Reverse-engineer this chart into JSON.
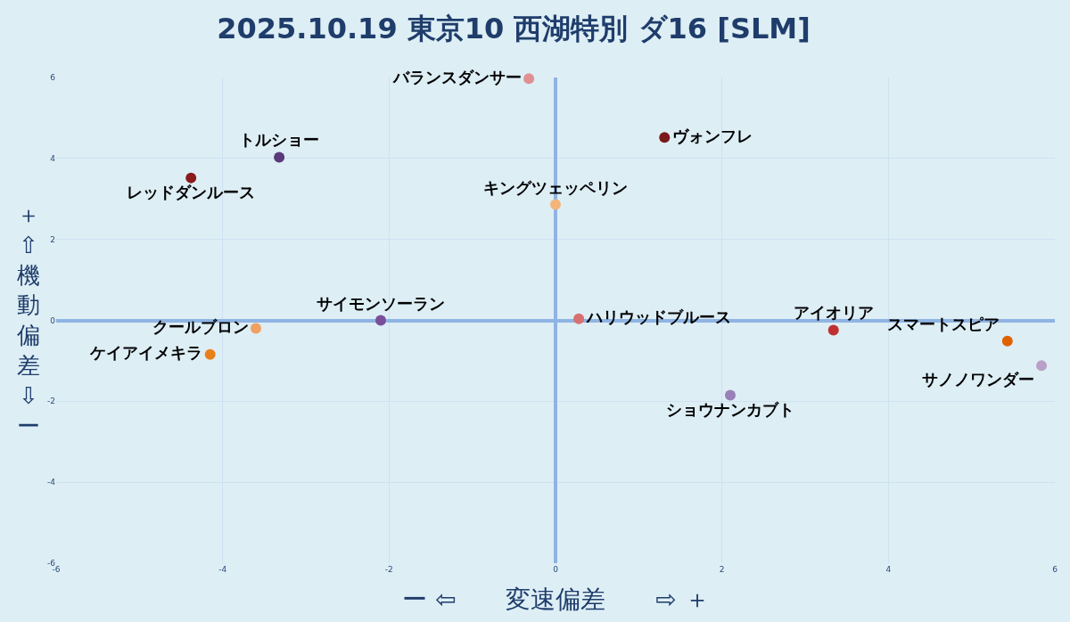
{
  "chart_data": {
    "type": "scatter",
    "title": "2025.10.19 東京10 西湖特別 ダ16 [SLM]",
    "xlabel": "ー ⇦　　変速偏差　　⇨ ＋",
    "ylabel": "＋⇧機動偏差⇩ー",
    "xlim": [
      -6,
      6
    ],
    "ylim": [
      -6,
      6
    ],
    "xticks": [
      -6,
      -4,
      -2,
      0,
      2,
      4,
      6
    ],
    "yticks": [
      -6,
      -4,
      -2,
      0,
      2,
      4,
      6
    ],
    "grid": true,
    "marker": "circle",
    "legend": false,
    "series": [
      {
        "name": "バランスダンサー",
        "color": "#e09090",
        "x": [
          -0.32
        ],
        "values": [
          5.97
        ]
      },
      {
        "name": "トルショー",
        "color": "#5a3a7a",
        "x": [
          -3.32
        ],
        "values": [
          4.03
        ]
      },
      {
        "name": "レッドダンルース",
        "color": "#8b1a1a",
        "x": [
          -4.38
        ],
        "values": [
          3.52
        ]
      },
      {
        "name": "ヴォンフレ",
        "color": "#7a1a1a",
        "x": [
          1.31
        ],
        "values": [
          4.52
        ]
      },
      {
        "name": "キングツェッペリン",
        "color": "#f4b57a",
        "x": [
          0.0
        ],
        "values": [
          2.86
        ]
      },
      {
        "name": "サイモンソーラン",
        "color": "#7a4f9a",
        "x": [
          -2.1
        ],
        "values": [
          0.0
        ]
      },
      {
        "name": "クールブロン",
        "color": "#f0a060",
        "x": [
          -3.6
        ],
        "values": [
          -0.2
        ]
      },
      {
        "name": "ケイアイメキラ",
        "color": "#e8801a",
        "x": [
          -4.15
        ],
        "values": [
          -0.84
        ]
      },
      {
        "name": "ハリウッドブルース",
        "color": "#d87070",
        "x": [
          0.28
        ],
        "values": [
          0.04
        ]
      },
      {
        "name": "アイオリア",
        "color": "#c03030",
        "x": [
          3.34
        ],
        "values": [
          -0.24
        ]
      },
      {
        "name": "スマートスピア",
        "color": "#e06000",
        "x": [
          5.43
        ],
        "values": [
          -0.51
        ]
      },
      {
        "name": "サノノワンダー",
        "color": "#b8a0c8",
        "x": [
          5.84
        ],
        "values": [
          -1.12
        ]
      },
      {
        "name": "ショウナンカブト",
        "color": "#9a80b8",
        "x": [
          2.1
        ],
        "values": [
          -1.85
        ]
      }
    ]
  }
}
